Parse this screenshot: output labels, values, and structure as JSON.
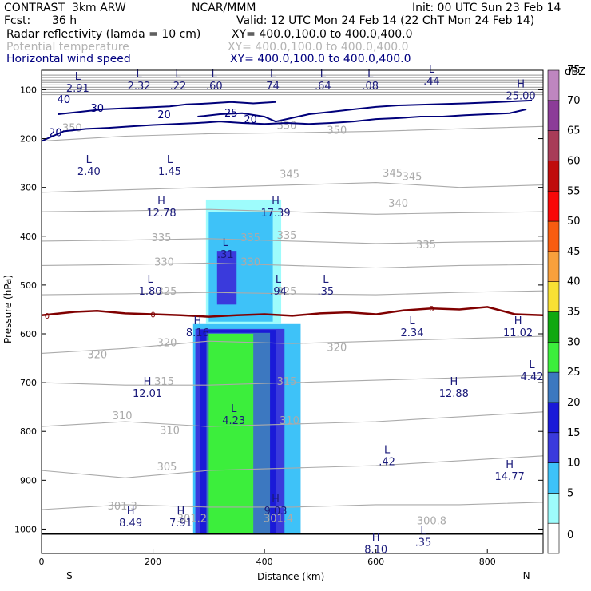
{
  "header": {
    "project": "CONTRAST",
    "model": "3km ARW",
    "center": "NCAR/MMM",
    "init": "Init: 00 UTC Sun 23 Feb 14",
    "fcst_label": "Fcst:",
    "fcst_value": "36 h",
    "valid": "Valid: 12 UTC Mon 24 Feb 14 (22 ChT Mon 24 Feb 14)"
  },
  "fields": [
    {
      "name": "Radar reflectivity (lamda = 10 cm)",
      "xy": "XY= 400.0,100.0 to 400.0,400.0",
      "color": "#000000"
    },
    {
      "name": "Potential temperature",
      "xy": "XY= 400.0,100.0 to 400.0,400.0",
      "color": "#b4b4b4"
    },
    {
      "name": "Horizontal wind speed",
      "xy": "XY= 400.0,100.0 to 400.0,400.0",
      "color": "#000080"
    }
  ],
  "colors": {
    "theta": "#aaaaaa",
    "wind": "#00007a",
    "freezing": "#800000",
    "axis": "#000000",
    "label": "#1a1a7a"
  },
  "chart_data": {
    "type": "cross-section",
    "xlabel": "Distance (km)",
    "ylabel": "Pressure (hPa)",
    "xlim": [
      0,
      900
    ],
    "ylim": [
      1050,
      60
    ],
    "x_ticks": [
      0,
      200,
      400,
      600,
      800
    ],
    "y_ticks": [
      100,
      200,
      300,
      400,
      500,
      600,
      700,
      800,
      900,
      1000
    ],
    "direction_labels": [
      {
        "x": 50,
        "text": "S"
      },
      {
        "x": 870,
        "text": "N"
      }
    ],
    "colorbar": {
      "title": "dBZ",
      "levels": [
        0,
        5,
        10,
        15,
        20,
        25,
        30,
        35,
        40,
        45,
        50,
        55,
        60,
        65,
        70,
        75
      ],
      "colors": [
        "#ffffff",
        "#9efcfc",
        "#3ec2f8",
        "#3a3adc",
        "#1a1ad8",
        "#3c78c0",
        "#3cee3c",
        "#10a810",
        "#f8e034",
        "#f8a03c",
        "#f85c10",
        "#f80808",
        "#c00c0c",
        "#a83c58",
        "#8c3c98",
        "#be86c0"
      ]
    },
    "reflectivity_regions": [
      {
        "x0": 272,
        "x1": 465,
        "p_top": 580,
        "p_bot": 1010,
        "dbz": 10
      },
      {
        "x0": 276,
        "x1": 436,
        "p_top": 590,
        "p_bot": 1010,
        "dbz": 15
      },
      {
        "x0": 285,
        "x1": 420,
        "p_top": 592,
        "p_bot": 1010,
        "dbz": 20
      },
      {
        "x0": 296,
        "x1": 410,
        "p_top": 598,
        "p_bot": 1010,
        "dbz": 25
      },
      {
        "x0": 300,
        "x1": 380,
        "p_top": 600,
        "p_bot": 1010,
        "dbz": 30
      },
      {
        "x0": 295,
        "x1": 430,
        "p_top": 325,
        "p_bot": 580,
        "dbz": 5
      },
      {
        "x0": 300,
        "x1": 415,
        "p_top": 350,
        "p_bot": 575,
        "dbz": 10
      },
      {
        "x0": 315,
        "x1": 350,
        "p_top": 430,
        "p_bot": 540,
        "dbz": 15
      }
    ],
    "freezing_level": {
      "label": "0",
      "x": [
        0,
        60,
        100,
        150,
        200,
        250,
        300,
        350,
        400,
        450,
        500,
        550,
        600,
        650,
        700,
        750,
        800,
        850,
        900
      ],
      "p": [
        562,
        555,
        553,
        558,
        560,
        562,
        565,
        562,
        560,
        563,
        558,
        556,
        560,
        552,
        548,
        550,
        545,
        560,
        562
      ]
    },
    "theta_contours": [
      {
        "value": "350",
        "x": [
          0,
          150,
          300,
          450,
          600,
          750,
          900
        ],
        "p": [
          205,
          195,
          190,
          188,
          185,
          180,
          175
        ]
      },
      {
        "value": "345",
        "x": [
          0,
          150,
          300,
          450,
          600,
          750,
          900
        ],
        "p": [
          310,
          305,
          300,
          295,
          290,
          300,
          295
        ]
      },
      {
        "value": "340",
        "x": [
          0,
          150,
          300,
          450,
          600,
          750,
          900
        ],
        "p": [
          350,
          348,
          345,
          350,
          355,
          352,
          350
        ]
      },
      {
        "value": "335",
        "x": [
          0,
          150,
          300,
          450,
          600,
          750,
          900
        ],
        "p": [
          410,
          408,
          405,
          410,
          415,
          412,
          410
        ]
      },
      {
        "value": "330",
        "x": [
          0,
          150,
          300,
          450,
          600,
          750,
          900
        ],
        "p": [
          460,
          458,
          455,
          460,
          465,
          460,
          458
        ]
      },
      {
        "value": "325",
        "x": [
          0,
          150,
          300,
          450,
          600,
          750,
          900
        ],
        "p": [
          520,
          518,
          515,
          518,
          520,
          515,
          512
        ]
      },
      {
        "value": "320",
        "x": [
          0,
          150,
          300,
          450,
          600,
          750,
          900
        ],
        "p": [
          640,
          630,
          615,
          620,
          615,
          610,
          605
        ]
      },
      {
        "value": "315",
        "x": [
          0,
          150,
          300,
          450,
          600,
          750,
          900
        ],
        "p": [
          700,
          705,
          705,
          700,
          695,
          690,
          685
        ]
      },
      {
        "value": "310",
        "x": [
          0,
          150,
          300,
          450,
          600,
          750,
          900
        ],
        "p": [
          790,
          780,
          790,
          785,
          780,
          770,
          760
        ]
      },
      {
        "value": "305",
        "x": [
          0,
          150,
          300,
          450,
          600,
          750,
          900
        ],
        "p": [
          880,
          895,
          880,
          875,
          870,
          860,
          850
        ]
      },
      {
        "value": "301.3",
        "x": [
          0,
          150,
          300,
          450,
          600,
          750,
          900
        ],
        "p": [
          960,
          950,
          955,
          955,
          950,
          950,
          945
        ]
      }
    ],
    "theta_labels": [
      {
        "x": 530,
        "p": 190,
        "text": "350"
      },
      {
        "x": 440,
        "p": 180,
        "text": "350"
      },
      {
        "x": 55,
        "p": 185,
        "text": "350"
      },
      {
        "x": 445,
        "p": 280,
        "text": "345"
      },
      {
        "x": 630,
        "p": 278,
        "text": "345"
      },
      {
        "x": 665,
        "p": 285,
        "text": "345"
      },
      {
        "x": 640,
        "p": 340,
        "text": "340"
      },
      {
        "x": 215,
        "p": 410,
        "text": "335"
      },
      {
        "x": 440,
        "p": 405,
        "text": "335"
      },
      {
        "x": 690,
        "p": 425,
        "text": "335"
      },
      {
        "x": 375,
        "p": 410,
        "text": "335"
      },
      {
        "x": 220,
        "p": 460,
        "text": "330"
      },
      {
        "x": 375,
        "p": 460,
        "text": "330"
      },
      {
        "x": 225,
        "p": 520,
        "text": "325"
      },
      {
        "x": 440,
        "p": 520,
        "text": "325"
      },
      {
        "x": 225,
        "p": 625,
        "text": "320"
      },
      {
        "x": 530,
        "p": 635,
        "text": "320"
      },
      {
        "x": 100,
        "p": 650,
        "text": "320"
      },
      {
        "x": 220,
        "p": 705,
        "text": "315"
      },
      {
        "x": 440,
        "p": 705,
        "text": "315"
      },
      {
        "x": 145,
        "p": 775,
        "text": "310"
      },
      {
        "x": 230,
        "p": 805,
        "text": "310"
      },
      {
        "x": 445,
        "p": 785,
        "text": "310"
      },
      {
        "x": 225,
        "p": 880,
        "text": "305"
      },
      {
        "x": 145,
        "p": 960,
        "text": "301.3"
      },
      {
        "x": 425,
        "p": 985,
        "text": "301.4"
      },
      {
        "x": 700,
        "p": 990,
        "text": "300.8"
      },
      {
        "x": 270,
        "p": 985,
        "text": "301.2"
      }
    ],
    "wind_contours": [
      {
        "value": "20",
        "p_path": [
          [
            0,
            205
          ],
          [
            40,
            185
          ],
          [
            80,
            180
          ],
          [
            120,
            178
          ],
          [
            160,
            175
          ],
          [
            200,
            172
          ],
          [
            240,
            170
          ],
          [
            280,
            168
          ],
          [
            320,
            165
          ],
          [
            360,
            168
          ],
          [
            400,
            170
          ],
          [
            440,
            168
          ],
          [
            480,
            170
          ],
          [
            520,
            168
          ],
          [
            560,
            165
          ],
          [
            600,
            160
          ],
          [
            640,
            158
          ],
          [
            680,
            155
          ],
          [
            720,
            155
          ],
          [
            760,
            152
          ],
          [
            800,
            150
          ],
          [
            840,
            148
          ],
          [
            870,
            140
          ]
        ]
      },
      {
        "value": "25",
        "p_path": [
          [
            280,
            155
          ],
          [
            320,
            150
          ],
          [
            360,
            148
          ],
          [
            400,
            155
          ],
          [
            420,
            165
          ],
          [
            440,
            160
          ],
          [
            480,
            150
          ],
          [
            520,
            145
          ],
          [
            560,
            140
          ],
          [
            600,
            135
          ],
          [
            640,
            132
          ],
          [
            700,
            130
          ],
          [
            760,
            128
          ],
          [
            800,
            126
          ],
          [
            840,
            124
          ],
          [
            880,
            122
          ]
        ]
      },
      {
        "value": "30",
        "p_path": [
          [
            30,
            150
          ],
          [
            70,
            145
          ],
          [
            110,
            140
          ],
          [
            150,
            138
          ],
          [
            190,
            136
          ],
          [
            230,
            134
          ],
          [
            260,
            130
          ],
          [
            300,
            128
          ],
          [
            340,
            125
          ],
          [
            380,
            128
          ],
          [
            420,
            125
          ]
        ]
      }
    ],
    "wind_labels": [
      {
        "x": 100,
        "p": 145,
        "text": "30"
      },
      {
        "x": 220,
        "p": 158,
        "text": "20"
      },
      {
        "x": 340,
        "p": 155,
        "text": "25"
      },
      {
        "x": 375,
        "p": 168,
        "text": "20"
      },
      {
        "x": 25,
        "p": 195,
        "text": "20"
      },
      {
        "x": 40,
        "p": 127,
        "text": "40"
      }
    ],
    "extrema": [
      {
        "x": 65,
        "p": 80,
        "letter": "L",
        "value": "2.91"
      },
      {
        "x": 175,
        "p": 75,
        "letter": "L",
        "value": "2.32"
      },
      {
        "x": 245,
        "p": 75,
        "letter": "L",
        "value": ".22"
      },
      {
        "x": 310,
        "p": 75,
        "letter": "L",
        "value": ".60"
      },
      {
        "x": 415,
        "p": 75,
        "letter": "L",
        "value": "74"
      },
      {
        "x": 505,
        "p": 75,
        "letter": "L",
        "value": ".64"
      },
      {
        "x": 590,
        "p": 75,
        "letter": "L",
        "value": ".08"
      },
      {
        "x": 700,
        "p": 65,
        "letter": "L",
        "value": ".44"
      },
      {
        "x": 860,
        "p": 95,
        "letter": "H",
        "value": "25.00"
      },
      {
        "x": 85,
        "p": 250,
        "letter": "L",
        "value": "2.40"
      },
      {
        "x": 230,
        "p": 250,
        "letter": "L",
        "value": "1.45"
      },
      {
        "x": 215,
        "p": 335,
        "letter": "H",
        "value": "12.78"
      },
      {
        "x": 420,
        "p": 335,
        "letter": "H",
        "value": "17.39"
      },
      {
        "x": 330,
        "p": 420,
        "letter": "L",
        "value": ".31"
      },
      {
        "x": 195,
        "p": 495,
        "letter": "L",
        "value": "1.80"
      },
      {
        "x": 425,
        "p": 495,
        "letter": "L",
        "value": ".94"
      },
      {
        "x": 510,
        "p": 495,
        "letter": "L",
        "value": ".35"
      },
      {
        "x": 280,
        "p": 580,
        "letter": "H",
        "value": "8.16"
      },
      {
        "x": 665,
        "p": 580,
        "letter": "L",
        "value": "2.34"
      },
      {
        "x": 855,
        "p": 580,
        "letter": "H",
        "value": "11.02"
      },
      {
        "x": 880,
        "p": 670,
        "letter": "L",
        "value": "4.42"
      },
      {
        "x": 190,
        "p": 705,
        "letter": "H",
        "value": "12.01"
      },
      {
        "x": 740,
        "p": 705,
        "letter": "H",
        "value": "12.88"
      },
      {
        "x": 345,
        "p": 760,
        "letter": "L",
        "value": "4.23"
      },
      {
        "x": 620,
        "p": 845,
        "letter": "L",
        "value": ".42"
      },
      {
        "x": 840,
        "p": 875,
        "letter": "H",
        "value": "14.77"
      },
      {
        "x": 420,
        "p": 945,
        "letter": "H",
        "value": "9.03"
      },
      {
        "x": 160,
        "p": 970,
        "letter": "H",
        "value": "8.49"
      },
      {
        "x": 250,
        "p": 970,
        "letter": "H",
        "value": "7.91"
      },
      {
        "x": 600,
        "p": 1025,
        "letter": "H",
        "value": "8.10"
      },
      {
        "x": 685,
        "p": 1010,
        "letter": "L",
        "value": ".35"
      }
    ]
  }
}
